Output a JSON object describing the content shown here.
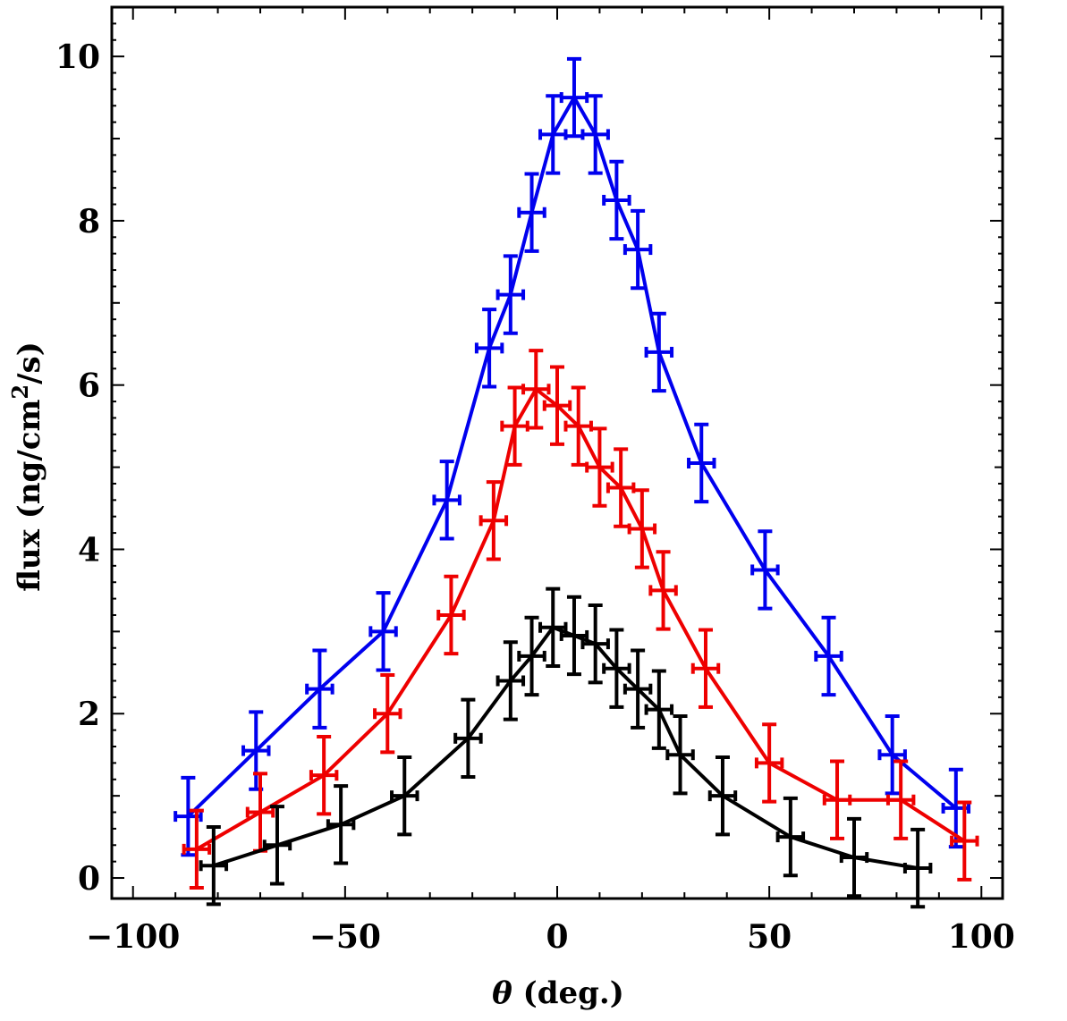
{
  "chart_data": {
    "type": "line",
    "title": "",
    "xlabel_symbol": "θ",
    "xlabel_unit": " (deg.)",
    "ylabel_main": "flux (ng/cm",
    "ylabel_sup": "2",
    "ylabel_tail": "/s)",
    "xlim": [
      -105,
      105
    ],
    "ylim": [
      -0.25,
      10.6
    ],
    "xticks": [
      -100,
      -50,
      0,
      50,
      100
    ],
    "xtick_labels": [
      "−100",
      "−50",
      "0",
      "50",
      "100"
    ],
    "yticks": [
      0,
      2,
      4,
      6,
      8,
      10
    ],
    "ytick_labels": [
      "0",
      "2",
      "4",
      "6",
      "8",
      "10"
    ],
    "x_error": 3,
    "grid": false,
    "series": [
      {
        "name": "blue",
        "color": "#0000ee",
        "x": [
          -87,
          -71,
          -56,
          -41,
          -26,
          -16,
          -11,
          -6,
          -1,
          4,
          9,
          14,
          19,
          24,
          34,
          49,
          64,
          79,
          94
        ],
        "y": [
          0.75,
          1.55,
          2.3,
          3.0,
          4.6,
          6.45,
          7.1,
          8.1,
          9.05,
          9.5,
          9.05,
          8.25,
          7.65,
          6.4,
          5.05,
          3.75,
          2.7,
          1.5,
          0.85
        ],
        "yerr": [
          0.47,
          0.47,
          0.47,
          0.47,
          0.47,
          0.47,
          0.47,
          0.47,
          0.47,
          0.47,
          0.47,
          0.47,
          0.47,
          0.47,
          0.47,
          0.47,
          0.47,
          0.47,
          0.47
        ]
      },
      {
        "name": "red",
        "color": "#ee0000",
        "x": [
          -85,
          -70,
          -55,
          -40,
          -25,
          -15,
          -10,
          -5,
          0,
          5,
          10,
          15,
          20,
          25,
          35,
          50,
          66,
          81,
          96
        ],
        "y": [
          0.35,
          0.8,
          1.25,
          2.0,
          3.2,
          4.35,
          5.5,
          5.95,
          5.75,
          5.5,
          5.0,
          4.75,
          4.25,
          3.5,
          2.55,
          1.4,
          0.95,
          0.95,
          0.45
        ],
        "yerr": [
          0.47,
          0.47,
          0.47,
          0.47,
          0.47,
          0.47,
          0.47,
          0.47,
          0.47,
          0.47,
          0.47,
          0.47,
          0.47,
          0.47,
          0.47,
          0.47,
          0.47,
          0.47,
          0.47
        ]
      },
      {
        "name": "black",
        "color": "#000000",
        "x": [
          -81,
          -66,
          -51,
          -36,
          -21,
          -11,
          -6,
          -1,
          4,
          9,
          14,
          19,
          24,
          29,
          39,
          55,
          70,
          85
        ],
        "y": [
          0.15,
          0.4,
          0.65,
          1.0,
          1.7,
          2.4,
          2.7,
          3.05,
          2.95,
          2.85,
          2.55,
          2.3,
          2.05,
          1.5,
          1.0,
          0.5,
          0.25,
          0.12
        ],
        "yerr": [
          0.47,
          0.47,
          0.47,
          0.47,
          0.47,
          0.47,
          0.47,
          0.47,
          0.47,
          0.47,
          0.47,
          0.47,
          0.47,
          0.47,
          0.47,
          0.47,
          0.47,
          0.47
        ]
      }
    ]
  }
}
